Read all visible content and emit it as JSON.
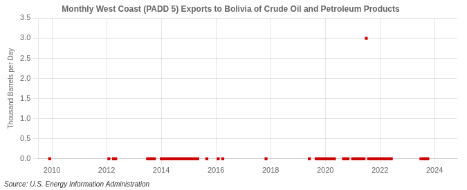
{
  "chart_data": {
    "type": "scatter",
    "title": "Monthly West Coast (PADD 5) Exports to Bolivia of Crude Oil and Petroleum Products",
    "ylabel": "Thousand Barrels per Day",
    "annotations": [
      "Source: U.S. Energy Information Administration"
    ],
    "color": "#cc0000",
    "marker": "square",
    "grid": true,
    "xlim": [
      2009.5,
      2024.83
    ],
    "ylim": [
      0,
      3.5
    ],
    "xticks": [
      2010,
      2012,
      2014,
      2016,
      2018,
      2020,
      2022,
      2024
    ],
    "yticks": [
      {
        "value": 0,
        "label": "0.0"
      },
      0.5,
      {
        "value": 1,
        "label": "1.0"
      },
      1.5,
      {
        "value": 2,
        "label": "2.0"
      },
      2.5,
      {
        "value": 3,
        "label": "3.0"
      },
      3.5
    ],
    "x": [
      2009.917,
      2012.083,
      2012.25,
      2012.333,
      2013.5,
      2013.583,
      2013.667,
      2013.75,
      2014.0,
      2014.083,
      2014.167,
      2014.25,
      2014.333,
      2014.417,
      2014.5,
      2014.583,
      2014.667,
      2014.75,
      2014.833,
      2014.917,
      2015.0,
      2015.083,
      2015.167,
      2015.25,
      2015.333,
      2015.667,
      2016.083,
      2016.25,
      2017.833,
      2019.417,
      2019.667,
      2019.75,
      2019.833,
      2019.917,
      2020.0,
      2020.083,
      2020.167,
      2020.25,
      2020.333,
      2020.667,
      2020.75,
      2020.833,
      2021.0,
      2021.083,
      2021.167,
      2021.25,
      2021.333,
      2021.417,
      2021.5,
      2021.583,
      2021.667,
      2021.75,
      2021.833,
      2021.917,
      2022.0,
      2022.083,
      2022.167,
      2022.25,
      2022.333,
      2022.417,
      2023.5,
      2023.583,
      2023.667,
      2023.75
    ],
    "values": [
      0.0,
      0.0,
      0.0,
      0.0,
      0.0,
      0.0,
      0.0,
      0.0,
      0.0,
      0.0,
      0.0,
      0.0,
      0.0,
      0.0,
      0.0,
      0.0,
      0.0,
      0.0,
      0.0,
      0.0,
      0.0,
      0.0,
      0.0,
      0.0,
      0.0,
      0.0,
      0.0,
      0.0,
      0.0,
      0.0,
      0.0,
      0.0,
      0.0,
      0.0,
      0.0,
      0.0,
      0.0,
      0.0,
      0.0,
      0.0,
      0.0,
      0.0,
      0.0,
      0.0,
      0.0,
      0.0,
      0.0,
      0.0,
      3.0,
      0.0,
      0.0,
      0.0,
      0.0,
      0.0,
      0.0,
      0.0,
      0.0,
      0.0,
      0.0,
      0.0,
      0.0,
      0.0,
      0.0,
      0.0
    ]
  }
}
